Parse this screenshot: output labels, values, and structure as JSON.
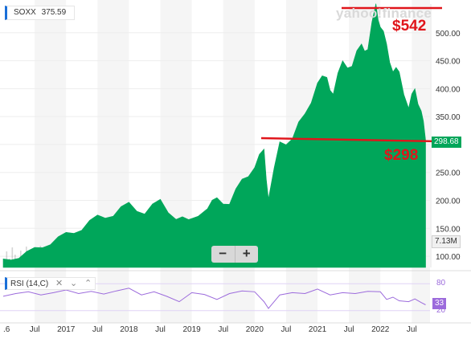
{
  "ticker_legend": {
    "symbol": "SOXX",
    "value": "375.59"
  },
  "watermark": "yahoo!finance",
  "price_tag": "298.68",
  "volume_tag": "7.13M",
  "annotations": {
    "high": "$542",
    "low": "$298"
  },
  "zoom": {
    "minus": "−",
    "plus": "+"
  },
  "rsi": {
    "label": "RSI (14,C)",
    "upper": "80",
    "lower": "20",
    "last": "33"
  },
  "colors": {
    "area": "#00a65a",
    "line": "#e0151b",
    "rsi": "#9c6bdc",
    "accent": "#1a6fd8"
  },
  "chart_data": {
    "type": "area",
    "title": "",
    "xlabel": "",
    "ylabel": "",
    "y_ticks": [
      "500.00",
      "450.00",
      "400.00",
      "350.00",
      "250.00",
      "200.00",
      "150.00",
      "100.00"
    ],
    "x_ticks": [
      ".6",
      "Jul",
      "2017",
      "Jul",
      "2018",
      "Jul",
      "2019",
      "Jul",
      "2020",
      "Jul",
      "2021",
      "Jul",
      "2022",
      "Jul"
    ],
    "ylim": [
      80,
      550
    ],
    "x": [
      2016.0,
      2016.25,
      2016.5,
      2016.75,
      2017.0,
      2017.25,
      2017.5,
      2017.75,
      2018.0,
      2018.25,
      2018.5,
      2018.75,
      2018.95,
      2019.25,
      2019.4,
      2019.6,
      2019.8,
      2020.0,
      2020.15,
      2020.22,
      2020.4,
      2020.6,
      2020.8,
      2021.0,
      2021.15,
      2021.25,
      2021.4,
      2021.55,
      2021.7,
      2021.8,
      2021.93,
      2022.0,
      2022.1,
      2022.2,
      2022.3,
      2022.45,
      2022.55,
      2022.65,
      2022.72
    ],
    "values": [
      92,
      100,
      112,
      125,
      138,
      152,
      168,
      178,
      190,
      182,
      195,
      172,
      160,
      192,
      198,
      200,
      230,
      268,
      282,
      210,
      295,
      320,
      345,
      420,
      410,
      400,
      440,
      450,
      470,
      480,
      542,
      520,
      470,
      440,
      420,
      375,
      390,
      370,
      298
    ],
    "reference_lines": [
      {
        "label": "$542",
        "value": 542
      },
      {
        "label": "$298",
        "value": 298
      }
    ],
    "rsi_series": {
      "name": "RSI (14,C)",
      "x": [
        2016.0,
        2016.2,
        2016.4,
        2016.6,
        2016.8,
        2017.0,
        2017.2,
        2017.4,
        2017.6,
        2017.8,
        2018.0,
        2018.2,
        2018.4,
        2018.6,
        2018.8,
        2019.0,
        2019.2,
        2019.4,
        2019.6,
        2019.8,
        2020.0,
        2020.15,
        2020.22,
        2020.4,
        2020.6,
        2020.8,
        2021.0,
        2021.2,
        2021.4,
        2021.6,
        2021.8,
        2022.0,
        2022.1,
        2022.2,
        2022.3,
        2022.45,
        2022.55,
        2022.65,
        2022.72
      ],
      "values": [
        52,
        58,
        62,
        55,
        60,
        66,
        58,
        63,
        57,
        64,
        70,
        55,
        62,
        52,
        40,
        60,
        56,
        45,
        58,
        64,
        62,
        40,
        25,
        55,
        60,
        58,
        68,
        55,
        60,
        58,
        63,
        62,
        45,
        50,
        42,
        40,
        46,
        38,
        33
      ],
      "ylim": [
        0,
        100
      ],
      "levels": [
        80,
        20
      ]
    }
  }
}
